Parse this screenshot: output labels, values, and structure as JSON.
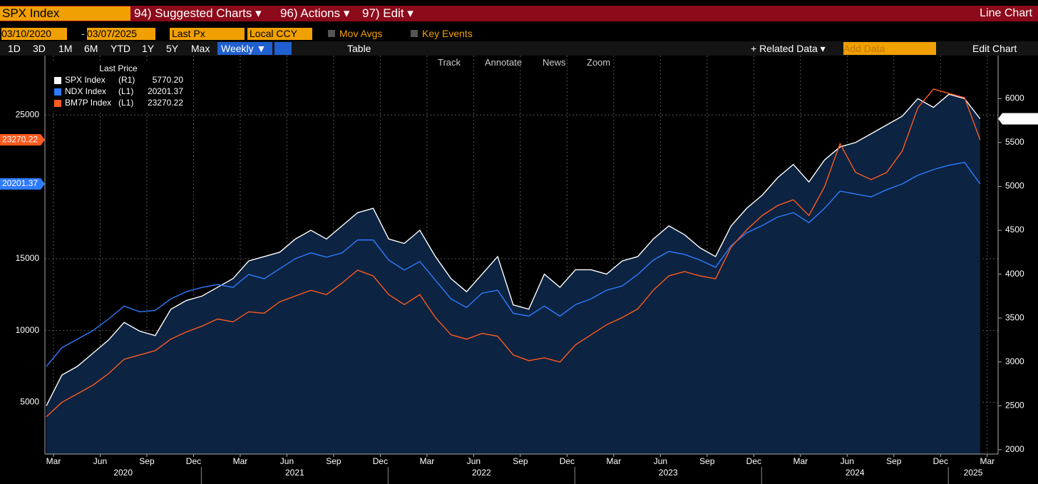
{
  "header": {
    "security": "SPX Index",
    "menus": [
      "94) Suggested Charts ▾",
      "96) Actions ▾",
      "97) Edit ▾"
    ],
    "chart_kind": "Line Chart"
  },
  "controls": {
    "start_date": "03/10/2020",
    "separator": "-",
    "end_date": "03/07/2025",
    "field": "Last Px",
    "currency": "Local CCY",
    "toggles": [
      "Mov Avgs",
      "Key Events"
    ]
  },
  "periods": [
    "1D",
    "3D",
    "1M",
    "6M",
    "YTD",
    "1Y",
    "5Y",
    "Max"
  ],
  "frequency": "Weekly ▼",
  "table_button": "Table",
  "related": "+ Related Data ▾",
  "add_data": "Add Data",
  "edit_chart": "Edit Chart",
  "tools": [
    "Track",
    "Annotate",
    "News",
    "Zoom"
  ],
  "chart_data": {
    "type": "line",
    "legend_title": "Last Price",
    "x": [
      "2020-03",
      "2020-04",
      "2020-05",
      "2020-06",
      "2020-07",
      "2020-08",
      "2020-09",
      "2020-10",
      "2020-11",
      "2020-12",
      "2021-01",
      "2021-02",
      "2021-03",
      "2021-04",
      "2021-05",
      "2021-06",
      "2021-07",
      "2021-08",
      "2021-09",
      "2021-10",
      "2021-11",
      "2021-12",
      "2022-01",
      "2022-02",
      "2022-03",
      "2022-04",
      "2022-05",
      "2022-06",
      "2022-07",
      "2022-08",
      "2022-09",
      "2022-10",
      "2022-11",
      "2022-12",
      "2023-01",
      "2023-02",
      "2023-03",
      "2023-04",
      "2023-05",
      "2023-06",
      "2023-07",
      "2023-08",
      "2023-09",
      "2023-10",
      "2023-11",
      "2023-12",
      "2024-01",
      "2024-02",
      "2024-03",
      "2024-04",
      "2024-05",
      "2024-06",
      "2024-07",
      "2024-08",
      "2024-09",
      "2024-10",
      "2024-11",
      "2024-12",
      "2025-01",
      "2025-02",
      "2025-03"
    ],
    "series": [
      {
        "name": "SPX Index",
        "axis_tag": "(R1)",
        "color": "#ffffff",
        "axis": "y2",
        "last_label": "5770.20",
        "values": [
          2500,
          2850,
          2950,
          3100,
          3250,
          3450,
          3350,
          3300,
          3600,
          3700,
          3750,
          3850,
          3950,
          4150,
          4200,
          4250,
          4400,
          4500,
          4400,
          4550,
          4700,
          4750,
          4400,
          4350,
          4500,
          4200,
          3950,
          3800,
          4000,
          4200,
          3650,
          3600,
          4000,
          3850,
          4050,
          4050,
          4000,
          4150,
          4200,
          4400,
          4550,
          4450,
          4300,
          4200,
          4550,
          4750,
          4900,
          5100,
          5250,
          5050,
          5300,
          5450,
          5500,
          5600,
          5700,
          5800,
          6000,
          5900,
          6050,
          6000,
          5770.2
        ]
      },
      {
        "name": "NDX Index",
        "axis_tag": "(L1)",
        "color": "#2f7bff",
        "last_label": "20201.37",
        "values": [
          7500,
          8800,
          9400,
          10000,
          10800,
          11700,
          11300,
          11400,
          12200,
          12700,
          13000,
          13200,
          13000,
          13900,
          13600,
          14300,
          15000,
          15400,
          15100,
          15400,
          16300,
          16300,
          14900,
          14200,
          14800,
          13500,
          12200,
          11600,
          12600,
          12800,
          11200,
          11000,
          11700,
          11000,
          11800,
          12200,
          12800,
          13100,
          13900,
          14900,
          15500,
          15300,
          14900,
          14400,
          15900,
          16800,
          17300,
          17900,
          18200,
          17500,
          18500,
          19700,
          19500,
          19300,
          19800,
          20200,
          20800,
          21200,
          21500,
          21700,
          20201.37
        ]
      },
      {
        "name": "BM7P Index",
        "axis_tag": "(L1)",
        "color": "#ff5a1f",
        "last_label": "23270.22",
        "values": [
          4000,
          5000,
          5600,
          6200,
          7000,
          8000,
          8300,
          8600,
          9400,
          9900,
          10300,
          10800,
          10600,
          11300,
          11200,
          12000,
          12400,
          12800,
          12500,
          13300,
          14200,
          13800,
          12500,
          11800,
          12500,
          10900,
          9700,
          9400,
          9800,
          9600,
          8300,
          7900,
          8100,
          7800,
          9000,
          9700,
          10400,
          10900,
          11500,
          12800,
          13800,
          14100,
          13800,
          13600,
          15800,
          17000,
          18000,
          18700,
          19100,
          18000,
          20000,
          23000,
          21000,
          20500,
          21000,
          22500,
          25500,
          26800,
          26500,
          26200,
          23270.22
        ]
      }
    ],
    "xticks": [
      {
        "value": "2020-03",
        "label": "Mar"
      },
      {
        "value": "2020-06",
        "label": "Jun"
      },
      {
        "value": "2020-09",
        "label": "Sep"
      },
      {
        "value": "2020-12",
        "label": "Dec"
      },
      {
        "value": "2021-03",
        "label": "Mar"
      },
      {
        "value": "2021-06",
        "label": "Jun"
      },
      {
        "value": "2021-09",
        "label": "Sep"
      },
      {
        "value": "2021-12",
        "label": "Dec"
      },
      {
        "value": "2022-03",
        "label": "Mar"
      },
      {
        "value": "2022-06",
        "label": "Jun"
      },
      {
        "value": "2022-09",
        "label": "Sep"
      },
      {
        "value": "2022-12",
        "label": "Dec"
      },
      {
        "value": "2023-03",
        "label": "Mar"
      },
      {
        "value": "2023-06",
        "label": "Jun"
      },
      {
        "value": "2023-09",
        "label": "Sep"
      },
      {
        "value": "2023-12",
        "label": "Dec"
      },
      {
        "value": "2024-03",
        "label": "Mar"
      },
      {
        "value": "2024-06",
        "label": "Jun"
      },
      {
        "value": "2024-09",
        "label": "Sep"
      },
      {
        "value": "2024-12",
        "label": "Dec"
      },
      {
        "value": "2025-03",
        "label": "Mar"
      }
    ],
    "years": [
      "2020",
      "2021",
      "2022",
      "2023",
      "2024",
      "2025"
    ],
    "ylim": [
      1400,
      29130
    ],
    "yticks": [
      5000,
      10000,
      15000,
      25000
    ],
    "y2lim": [
      1950,
      6490
    ],
    "y2ticks": [
      2000,
      2500,
      3000,
      3500,
      4000,
      4500,
      5000,
      5500,
      6000
    ],
    "grid": true,
    "area_color": "#0c2341"
  }
}
